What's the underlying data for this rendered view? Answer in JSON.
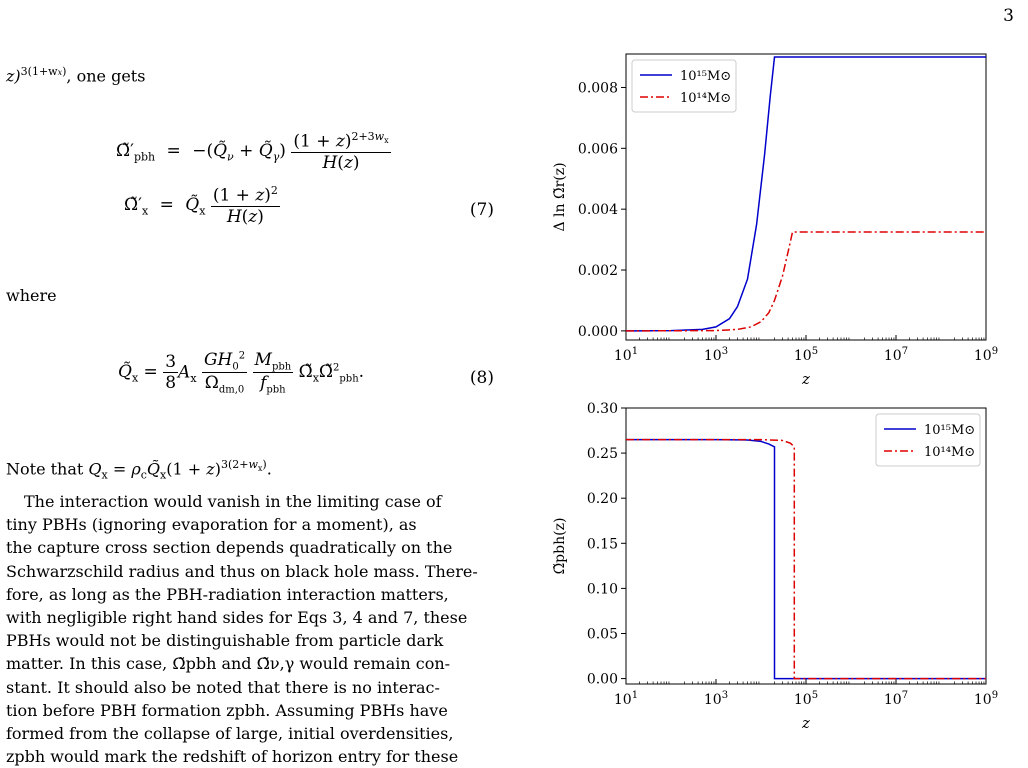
{
  "page": {
    "number": "3"
  },
  "text": {
    "lead_in": ", one gets",
    "lead_in_math": "z)",
    "lead_in_exp": "3(1+w",
    "lead_in_exp_sub": "x",
    "lead_in_exp_end": ")",
    "where": "where",
    "note": "Note that",
    "paragraph": [
      "The interaction would vanish in the limiting case of",
      "tiny PBHs (ignoring evaporation for a moment), as",
      "the capture cross section depends quadratically on the",
      "Schwarzschild radius and thus on black hole mass. There-",
      "fore, as long as the PBH-radiation interaction matters,",
      "with negligible right hand sides for Eqs 3, 4 and 7, these",
      "PBHs would not be distinguishable from particle dark",
      "matter. In this case, Ω̃pbh and Ω̃ν,γ would remain con-",
      "stant. It should also be noted that there is no interac-",
      "tion before PBH formation zpbh. Assuming PBHs have",
      "formed from the collapse of large, initial overdensities,",
      "zpbh would mark the redshift of horizon entry for these"
    ]
  },
  "equations": {
    "eq7": {
      "number": "(7)"
    },
    "eq8": {
      "number": "(8)"
    }
  },
  "chart_data": [
    {
      "type": "line",
      "xlabel": "z",
      "ylabel": "Δ ln Ω̃r(z)",
      "xscale": "log",
      "xlim": [
        10,
        1000000000
      ],
      "ylim": [
        -0.0003,
        0.0091
      ],
      "xticks": [
        {
          "base": "10",
          "exp": "1",
          "v": 10
        },
        {
          "base": "10",
          "exp": "3",
          "v": 1000
        },
        {
          "base": "10",
          "exp": "5",
          "v": 100000
        },
        {
          "base": "10",
          "exp": "7",
          "v": 10000000
        },
        {
          "base": "10",
          "exp": "9",
          "v": 1000000000
        }
      ],
      "yticks": [
        {
          "label": "0.000",
          "v": 0.0
        },
        {
          "label": "0.002",
          "v": 0.002
        },
        {
          "label": "0.004",
          "v": 0.004
        },
        {
          "label": "0.006",
          "v": 0.006
        },
        {
          "label": "0.008",
          "v": 0.008
        }
      ],
      "legend_position": "top-left",
      "series": [
        {
          "name": "10¹⁵M⊙",
          "color": "#0000cc",
          "dash": "none",
          "x": [
            10,
            100,
            500,
            1000,
            2000,
            3000,
            5000,
            8000,
            12000,
            16000,
            20000,
            1000000000
          ],
          "y": [
            0,
            1e-05,
            5e-05,
            0.00013,
            0.0004,
            0.0008,
            0.0017,
            0.0035,
            0.0058,
            0.0077,
            0.009,
            0.009
          ]
        },
        {
          "name": "10¹⁴M⊙",
          "color": "#dd0000",
          "dash": "8,3,2,3",
          "x": [
            10,
            1000,
            3000,
            6000,
            10000,
            15000,
            20000,
            30000,
            40000,
            50000,
            1000000000
          ],
          "y": [
            0,
            1e-05,
            5e-05,
            0.00013,
            0.0003,
            0.0006,
            0.001,
            0.0018,
            0.0026,
            0.00325,
            0.00325
          ]
        }
      ]
    },
    {
      "type": "line",
      "xlabel": "z",
      "ylabel": "Ω̃pbh(z)",
      "xscale": "log",
      "xlim": [
        10,
        1000000000
      ],
      "ylim": [
        -0.006,
        0.3
      ],
      "xticks": [
        {
          "base": "10",
          "exp": "1",
          "v": 10
        },
        {
          "base": "10",
          "exp": "3",
          "v": 1000
        },
        {
          "base": "10",
          "exp": "5",
          "v": 100000
        },
        {
          "base": "10",
          "exp": "7",
          "v": 10000000
        },
        {
          "base": "10",
          "exp": "9",
          "v": 1000000000
        }
      ],
      "yticks": [
        {
          "label": "0.00",
          "v": 0.0
        },
        {
          "label": "0.05",
          "v": 0.05
        },
        {
          "label": "0.10",
          "v": 0.1
        },
        {
          "label": "0.15",
          "v": 0.15
        },
        {
          "label": "0.20",
          "v": 0.2
        },
        {
          "label": "0.25",
          "v": 0.25
        },
        {
          "label": "0.30",
          "v": 0.3
        }
      ],
      "legend_position": "top-right",
      "series": [
        {
          "name": "10¹⁵M⊙",
          "color": "#0000cc",
          "dash": "none",
          "x": [
            10,
            1000,
            5000,
            10000,
            15000,
            20000,
            20000,
            1000000000
          ],
          "y": [
            0.265,
            0.265,
            0.2645,
            0.263,
            0.26,
            0.257,
            0,
            0
          ]
        },
        {
          "name": "10¹⁴M⊙",
          "color": "#dd0000",
          "dash": "8,3,2,3",
          "x": [
            10,
            1000,
            10000,
            30000,
            45000,
            55000,
            55000,
            1000000000
          ],
          "y": [
            0.265,
            0.265,
            0.265,
            0.264,
            0.261,
            0.257,
            0,
            0
          ]
        }
      ]
    }
  ]
}
